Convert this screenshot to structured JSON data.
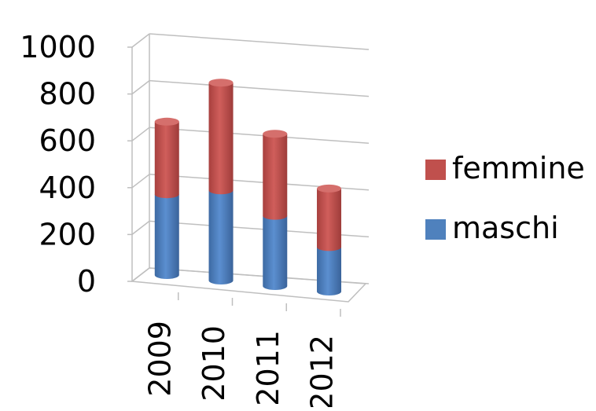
{
  "chart_data": {
    "type": "bar",
    "stacked": true,
    "three_d": true,
    "categories": [
      "2009",
      "2010",
      "2011",
      "2012"
    ],
    "series": [
      {
        "name": "maschi",
        "values": [
          345,
          385,
          300,
          190
        ],
        "color": "#4F81BD"
      },
      {
        "name": "femmine",
        "values": [
          310,
          460,
          350,
          250
        ],
        "color": "#C0504D"
      }
    ],
    "yticks": [
      "0",
      "200",
      "400",
      "600",
      "800",
      "1000"
    ],
    "ylim": [
      0,
      1000
    ],
    "grid": true,
    "legend": {
      "placement": "right",
      "entries": [
        "femmine",
        "maschi"
      ]
    },
    "title": "",
    "xlabel": "",
    "ylabel": ""
  }
}
